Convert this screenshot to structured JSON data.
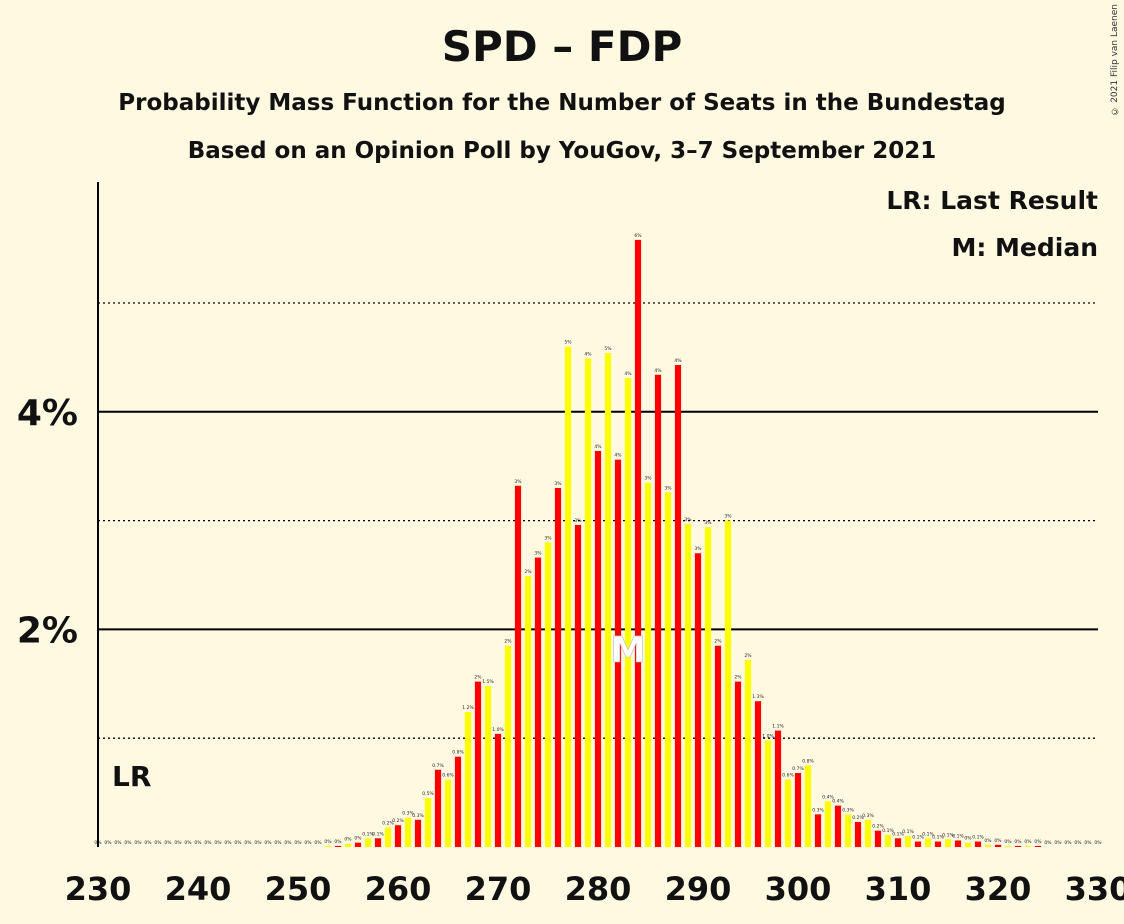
{
  "title": "SPD – FDP",
  "subtitle1": "Probability Mass Function for the Number of Seats in the Bundestag",
  "subtitle2": "Based on an Opinion Poll by YouGov, 3–7 September 2021",
  "copyright": "© 2021 Filip van Laenen",
  "legend": {
    "last_result": "LR: Last Result",
    "median": "M: Median"
  },
  "markers": {
    "last_result_label": "LR",
    "median_label": "M",
    "median_seat": 283
  },
  "chart_data": {
    "type": "bar",
    "xlim": [
      230,
      330
    ],
    "ylim": [
      0,
      6.1
    ],
    "x_ticks": [
      230,
      240,
      250,
      260,
      270,
      280,
      290,
      300,
      310,
      320,
      330
    ],
    "y_ticks_solid": [
      2,
      4
    ],
    "y_tick_labels": [
      "2%",
      "4%"
    ],
    "y_ticks_dotted": [
      1,
      3,
      5
    ],
    "colors": {
      "odd": "#FFFF00",
      "even": "#FF0000",
      "background": "#FFF9E2"
    },
    "seats": [
      230,
      231,
      232,
      233,
      234,
      235,
      236,
      237,
      238,
      239,
      240,
      241,
      242,
      243,
      244,
      245,
      246,
      247,
      248,
      249,
      250,
      251,
      252,
      253,
      254,
      255,
      256,
      257,
      258,
      259,
      260,
      261,
      262,
      263,
      264,
      265,
      266,
      267,
      268,
      269,
      270,
      271,
      272,
      273,
      274,
      275,
      276,
      277,
      278,
      279,
      280,
      281,
      282,
      283,
      284,
      285,
      286,
      287,
      288,
      289,
      290,
      291,
      292,
      293,
      294,
      295,
      296,
      297,
      298,
      299,
      300,
      301,
      302,
      303,
      304,
      305,
      306,
      307,
      308,
      309,
      310,
      311,
      312,
      313,
      314,
      315,
      316,
      317,
      318,
      319,
      320,
      321,
      322,
      323,
      324,
      325,
      326,
      327,
      328,
      329,
      330
    ],
    "values": [
      0,
      0,
      0,
      0,
      0,
      0,
      0,
      0,
      0,
      0,
      0,
      0,
      0,
      0,
      0,
      0,
      0,
      0,
      0,
      0,
      0,
      0,
      0,
      0.01,
      0.01,
      0.03,
      0.04,
      0.08,
      0.08,
      0.18,
      0.2,
      0.27,
      0.25,
      0.45,
      0.71,
      0.62,
      0.83,
      1.24,
      1.52,
      1.48,
      1.04,
      1.85,
      3.32,
      2.49,
      2.66,
      2.8,
      3.3,
      4.6,
      2.96,
      4.49,
      3.64,
      4.54,
      3.56,
      4.31,
      5.58,
      3.35,
      4.34,
      3.26,
      4.43,
      2.97,
      2.7,
      2.94,
      1.85,
      3.0,
      1.52,
      1.72,
      1.34,
      0.98,
      1.07,
      0.62,
      0.68,
      0.75,
      0.3,
      0.42,
      0.38,
      0.3,
      0.23,
      0.25,
      0.15,
      0.11,
      0.08,
      0.1,
      0.05,
      0.08,
      0.05,
      0.07,
      0.06,
      0.04,
      0.05,
      0.02,
      0.02,
      0.01,
      0.01,
      0.01,
      0.01,
      0,
      0,
      0,
      0,
      0,
      0
    ],
    "value_labels": [
      "0%",
      "0%",
      "0%",
      "0%",
      "0%",
      "0%",
      "0%",
      "0%",
      "0%",
      "0%",
      "0%",
      "0%",
      "0%",
      "0%",
      "0%",
      "0%",
      "0%",
      "0%",
      "0%",
      "0%",
      "0%",
      "0%",
      "0%",
      "0%",
      "0%",
      "0%",
      "0%",
      "0.1%",
      "0.1%",
      "0.2%",
      "0.2%",
      "0.3%",
      "0.3%",
      "0.5%",
      "0.7%",
      "0.6%",
      "0.8%",
      "1.2%",
      "2%",
      "1.5%",
      "1.0%",
      "2%",
      "3%",
      "2%",
      "3%",
      "3%",
      "3%",
      "5%",
      "3%",
      "4%",
      "4%",
      "5%",
      "4%",
      "4%",
      "6%",
      "3%",
      "4%",
      "3%",
      "4%",
      "3%",
      "3%",
      "3%",
      "2%",
      "3%",
      "2%",
      "2%",
      "1.3%",
      "1.0%",
      "1.1%",
      "0.6%",
      "0.7%",
      "0.8%",
      "0.3%",
      "0.4%",
      "0.4%",
      "0.3%",
      "0.2%",
      "0.3%",
      "0.2%",
      "0.1%",
      "0.1%",
      "0.1%",
      "0.1%",
      "0.1%",
      "0.1%",
      "0.1%",
      "0.1%",
      "0%",
      "0.1%",
      "0%",
      "0%",
      "0%",
      "0%",
      "0%",
      "0%",
      "0%",
      "0%",
      "0%",
      "0%",
      "0%",
      "0%"
    ]
  }
}
